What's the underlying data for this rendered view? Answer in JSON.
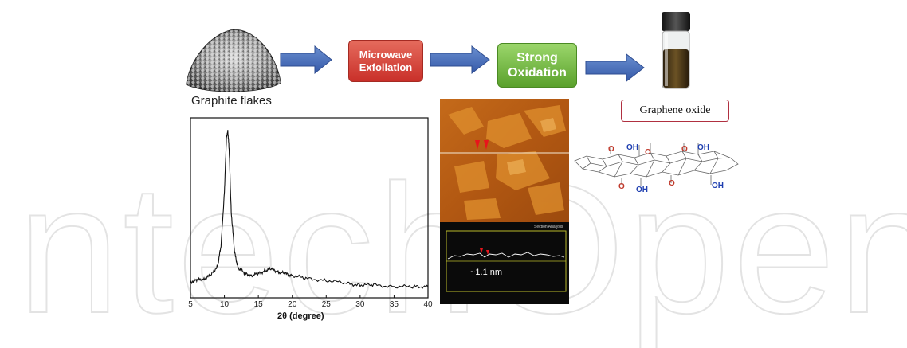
{
  "steps": [
    {
      "line1": "Microwave",
      "line2": "Exfoliation",
      "color": "#d9433a"
    },
    {
      "line1": "Strong",
      "line2": "Oxidation",
      "color": "#7cc24a"
    }
  ],
  "labels": {
    "graphite": "Graphite flakes",
    "graphene_oxide": "Graphene oxide",
    "afm_profile": "~1.1 nm",
    "section_title": "Section Analysis"
  },
  "molecule_groups": {
    "top": [
      "O",
      "OH",
      "O",
      "O",
      "OH"
    ],
    "bottom": [
      "O",
      "OH",
      "O",
      "OH"
    ]
  },
  "watermark": "IntechOpen",
  "chart_data": {
    "type": "line",
    "title": "",
    "xlabel": "2θ (degree)",
    "ylabel": "",
    "xlim": [
      5,
      40
    ],
    "x_ticks": [
      5,
      10,
      15,
      20,
      25,
      30,
      35,
      40
    ],
    "x": [
      5,
      6,
      7,
      8,
      9,
      9.5,
      10,
      10.3,
      10.5,
      10.7,
      11,
      11.5,
      12,
      13,
      14,
      15,
      16,
      17,
      18,
      19,
      20,
      22,
      25,
      28,
      30,
      32,
      35,
      38,
      40
    ],
    "y": [
      0.06,
      0.07,
      0.08,
      0.1,
      0.16,
      0.28,
      0.62,
      0.95,
      1.0,
      0.88,
      0.5,
      0.24,
      0.15,
      0.11,
      0.1,
      0.11,
      0.13,
      0.14,
      0.12,
      0.11,
      0.1,
      0.08,
      0.07,
      0.05,
      0.04,
      0.04,
      0.03,
      0.03,
      0.03
    ],
    "grid": false
  }
}
